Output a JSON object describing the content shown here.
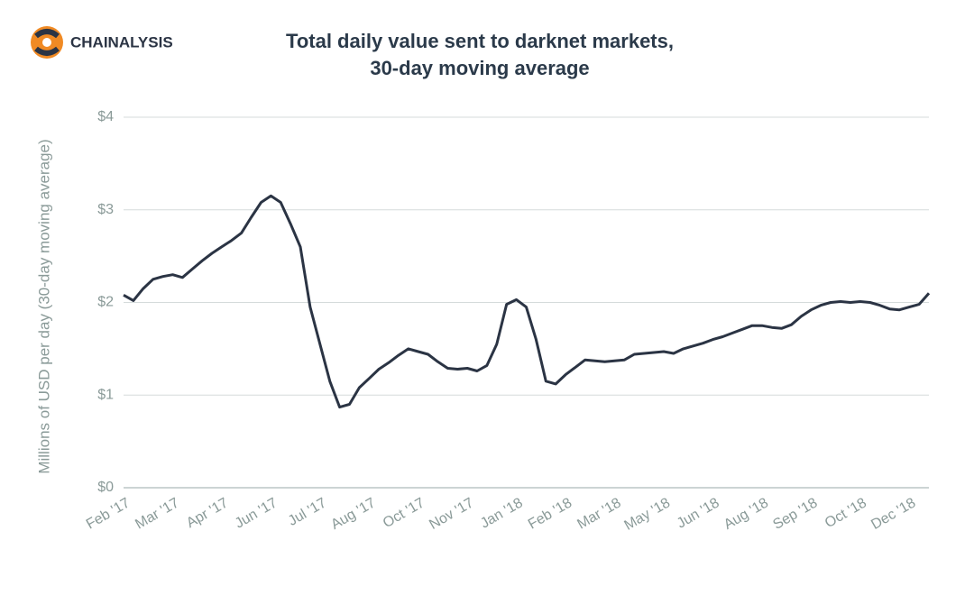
{
  "logo_text": "CHAINALYSIS",
  "chart_data": {
    "type": "line",
    "title": [
      "Total daily value sent to darknet markets,",
      "30-day moving average"
    ],
    "y_label": "Millions of USD per day (30-day moving average)",
    "categories": [
      "Feb '17",
      null,
      null,
      null,
      null,
      "Mar '17",
      null,
      null,
      null,
      null,
      "Apr '17",
      null,
      null,
      null,
      null,
      "Jun '17",
      null,
      null,
      null,
      null,
      "Jul '17",
      null,
      null,
      null,
      null,
      "Aug '17",
      null,
      null,
      null,
      null,
      "Oct '17",
      null,
      null,
      null,
      null,
      "Nov '17",
      null,
      null,
      null,
      null,
      "Jan '18",
      null,
      null,
      null,
      null,
      "Feb '18",
      null,
      null,
      null,
      null,
      "Mar '18",
      null,
      null,
      null,
      null,
      "May '18",
      null,
      null,
      null,
      null,
      "Jun '18",
      null,
      null,
      null,
      null,
      "Aug '18",
      null,
      null,
      null,
      null,
      "Sep '18",
      null,
      null,
      null,
      null,
      "Oct '18",
      null,
      null,
      null,
      null,
      "Dec '18",
      null,
      null
    ],
    "series": [
      {
        "name": "Total daily value",
        "color": "#2b3444",
        "values": [
          2.08,
          2.02,
          2.15,
          2.25,
          2.28,
          2.3,
          2.27,
          2.36,
          2.45,
          2.53,
          2.6,
          2.67,
          2.75,
          2.92,
          3.08,
          3.15,
          3.08,
          2.85,
          2.6,
          1.95,
          1.55,
          1.15,
          0.87,
          0.9,
          1.08,
          1.18,
          1.28,
          1.35,
          1.43,
          1.5,
          1.47,
          1.44,
          1.36,
          1.29,
          1.28,
          1.29,
          1.26,
          1.32,
          1.55,
          1.98,
          2.03,
          1.95,
          1.6,
          1.15,
          1.12,
          1.22,
          1.3,
          1.38,
          1.37,
          1.36,
          1.37,
          1.38,
          1.44,
          1.45,
          1.46,
          1.47,
          1.45,
          1.5,
          1.53,
          1.56,
          1.6,
          1.63,
          1.67,
          1.71,
          1.75,
          1.75,
          1.73,
          1.72,
          1.76,
          1.85,
          1.92,
          1.97,
          2.0,
          2.01,
          2.0,
          2.01,
          2.0,
          1.97,
          1.93,
          1.92,
          1.95,
          1.98,
          2.1
        ]
      }
    ],
    "ylim": [
      0,
      4
    ],
    "yticks": [
      {
        "value": 0,
        "label": "$0"
      },
      {
        "value": 1,
        "label": "$1"
      },
      {
        "value": 2,
        "label": "$2"
      },
      {
        "value": 3,
        "label": "$3"
      },
      {
        "value": 4,
        "label": "$4"
      }
    ],
    "grid": true
  }
}
